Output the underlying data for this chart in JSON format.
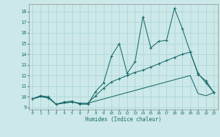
{
  "xlabel": "Humidex (Indice chaleur)",
  "bg_color": "#cce8e8",
  "grid_color": "#b0d8d8",
  "line_color": "#1a6b6b",
  "xlim": [
    -0.5,
    23.5
  ],
  "ylim": [
    8.8,
    18.7
  ],
  "xticks": [
    0,
    1,
    2,
    3,
    4,
    5,
    6,
    7,
    8,
    9,
    10,
    11,
    12,
    13,
    14,
    15,
    16,
    17,
    18,
    19,
    20,
    21,
    22,
    23
  ],
  "yticks": [
    9,
    10,
    11,
    12,
    13,
    14,
    15,
    16,
    17,
    18
  ],
  "series1_x": [
    0,
    1,
    2,
    3,
    4,
    5,
    6,
    7,
    8,
    9,
    10,
    11,
    12,
    13,
    14,
    15,
    16,
    17,
    18,
    19,
    20,
    21,
    22,
    23
  ],
  "series1_y": [
    9.8,
    10.1,
    10.0,
    9.3,
    9.5,
    9.6,
    9.3,
    9.3,
    10.5,
    11.3,
    13.8,
    15.0,
    12.2,
    13.3,
    17.5,
    14.6,
    15.2,
    15.3,
    18.3,
    16.4,
    14.2,
    12.2,
    11.3,
    10.4
  ],
  "series2_x": [
    0,
    1,
    2,
    3,
    4,
    5,
    6,
    7,
    8,
    9,
    10,
    11,
    12,
    13,
    14,
    15,
    16,
    17,
    18,
    19,
    20,
    21,
    22,
    23
  ],
  "series2_y": [
    9.8,
    10.1,
    9.9,
    9.3,
    9.5,
    9.5,
    9.4,
    9.4,
    10.1,
    10.8,
    11.4,
    11.7,
    12.0,
    12.3,
    12.5,
    12.8,
    13.1,
    13.4,
    13.7,
    14.0,
    14.2,
    12.1,
    11.5,
    10.4
  ],
  "series3_x": [
    0,
    1,
    2,
    3,
    4,
    5,
    6,
    7,
    8,
    9,
    10,
    11,
    12,
    13,
    14,
    15,
    16,
    17,
    18,
    19,
    20,
    21,
    22,
    23
  ],
  "series3_y": [
    9.8,
    10.0,
    9.9,
    9.3,
    9.4,
    9.5,
    9.4,
    9.4,
    9.6,
    9.8,
    10.0,
    10.2,
    10.4,
    10.6,
    10.8,
    11.0,
    11.2,
    11.4,
    11.6,
    11.8,
    12.0,
    10.3,
    10.1,
    10.4
  ]
}
